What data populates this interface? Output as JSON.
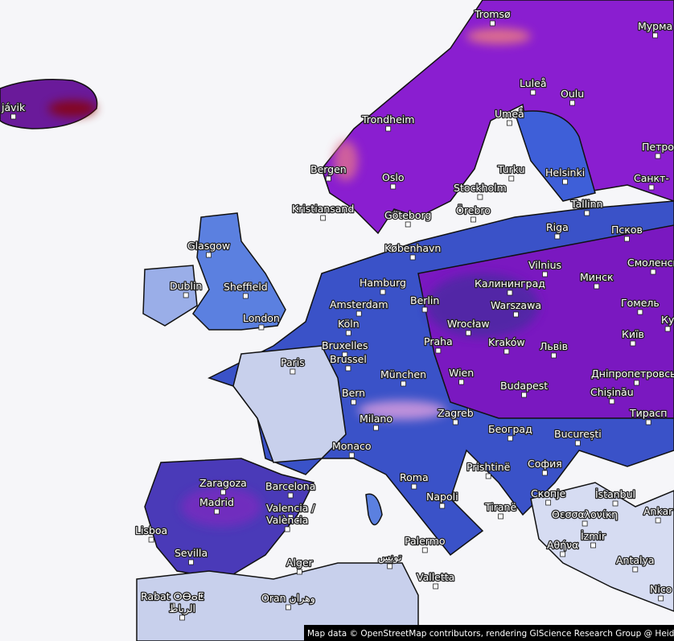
{
  "labels": [
    "Tromsø",
    "Мурма",
    "jávik",
    "Luleå",
    "Oulu",
    "Umeå",
    "Trondheim",
    "Петро",
    "Bergen",
    "Oslo",
    "Turku",
    "Helsinki",
    "Санкт-",
    "Stockholm",
    "Kristiansand",
    "Göteborg",
    "Örebro",
    "Tallinn",
    "Glasgow",
    "Riga",
    "Псков",
    "København",
    "Vilnius",
    "Смоленск",
    "Dublin",
    "Sheffield",
    "Hamburg",
    "Калининград",
    "Минск",
    "Amsterdam",
    "Berlin",
    "Warszawa",
    "Гомель",
    "London",
    "Köln",
    "Wrocław",
    "Ку",
    "Київ",
    "Bruxelles",
    "Brussel",
    "Praha",
    "Kraków",
    "Львів",
    "Paris",
    "München",
    "Wien",
    "Днiпропетровськ",
    "Budapest",
    "Bern",
    "Chişinău",
    "Zagreb",
    "Milano",
    "Тирасп",
    "Београд",
    "București",
    "Monaco",
    "Prishtinë",
    "София",
    "Zaragoza",
    "Barcelona",
    "Roma",
    "Скопје",
    "İstanbul",
    "Madrid",
    "Napoli",
    "Tiranë",
    "Ankar",
    "Valencia /",
    "València",
    "Θεσσαλονίκη",
    "Lisboa",
    "İzmir",
    "Palermo",
    "Αθήνα",
    "Sevilla",
    "Alger",
    "تونس",
    "Antalya",
    "Valletta",
    "Rabat ⵔⴱⴰⵟ",
    "الرباط",
    "Oran وهران",
    "Nico"
  ],
  "attribution": "Map data © OpenStreetMap contributors, rendering GIScience Research Group @ Heid"
}
